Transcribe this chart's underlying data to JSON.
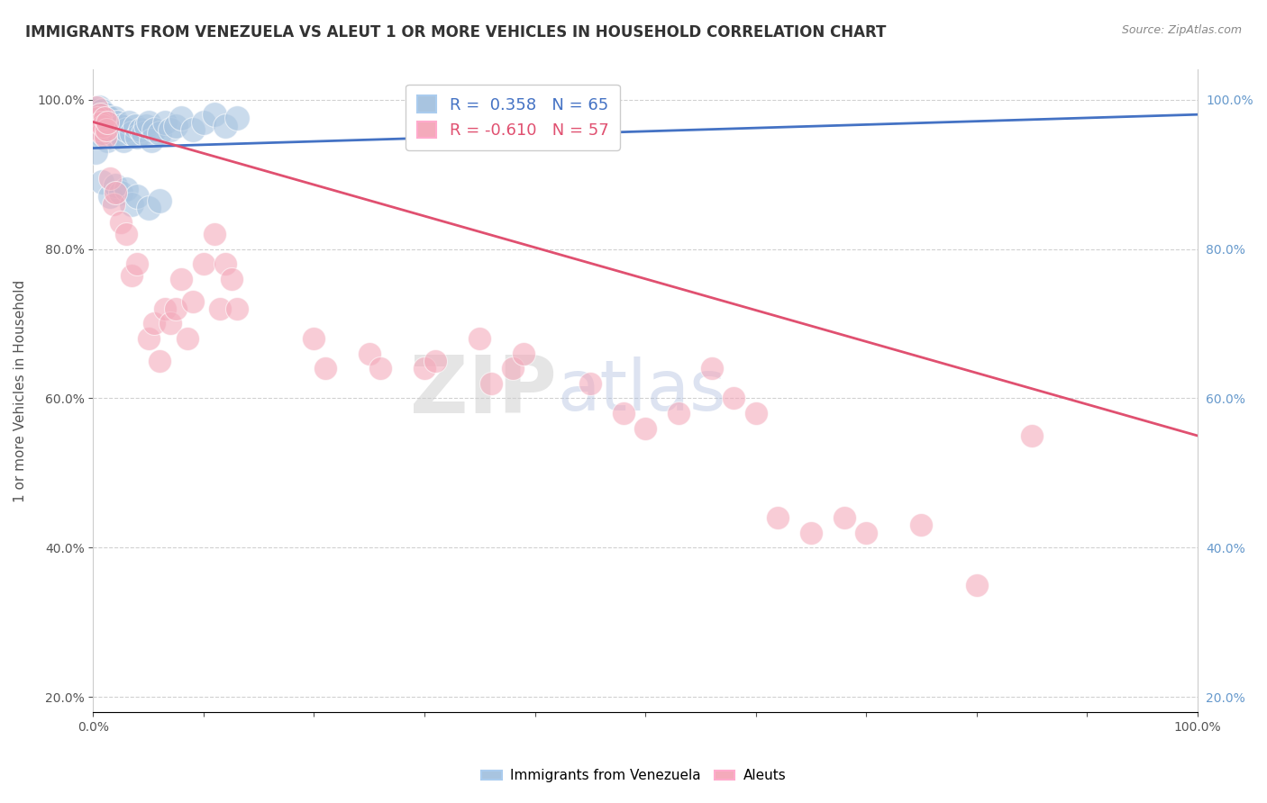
{
  "title": "IMMIGRANTS FROM VENEZUELA VS ALEUT 1 OR MORE VEHICLES IN HOUSEHOLD CORRELATION CHART",
  "source": "Source: ZipAtlas.com",
  "ylabel": "1 or more Vehicles in Household",
  "legend_label1": "Immigrants from Venezuela",
  "legend_label2": "Aleuts",
  "R_blue": 0.358,
  "N_blue": 65,
  "R_pink": -0.61,
  "N_pink": 57,
  "blue_color": "#A8C4E0",
  "pink_color": "#F4AABB",
  "blue_line_color": "#4472C4",
  "pink_line_color": "#E05070",
  "watermark_zip": "ZIP",
  "watermark_atlas": "atlas",
  "ylim_min": 0.18,
  "ylim_max": 1.04,
  "blue_points": [
    [
      0.001,
      0.985
    ],
    [
      0.002,
      0.975
    ],
    [
      0.003,
      0.97
    ],
    [
      0.004,
      0.965
    ],
    [
      0.005,
      0.99
    ],
    [
      0.005,
      0.96
    ],
    [
      0.006,
      0.98
    ],
    [
      0.006,
      0.97
    ],
    [
      0.007,
      0.975
    ],
    [
      0.007,
      0.955
    ],
    [
      0.008,
      0.985
    ],
    [
      0.008,
      0.96
    ],
    [
      0.009,
      0.97
    ],
    [
      0.009,
      0.95
    ],
    [
      0.01,
      0.975
    ],
    [
      0.01,
      0.965
    ],
    [
      0.011,
      0.96
    ],
    [
      0.011,
      0.98
    ],
    [
      0.012,
      0.955
    ],
    [
      0.012,
      0.97
    ],
    [
      0.013,
      0.965
    ],
    [
      0.013,
      0.945
    ],
    [
      0.014,
      0.975
    ],
    [
      0.015,
      0.96
    ],
    [
      0.016,
      0.97
    ],
    [
      0.017,
      0.955
    ],
    [
      0.018,
      0.965
    ],
    [
      0.019,
      0.975
    ],
    [
      0.02,
      0.96
    ],
    [
      0.021,
      0.95
    ],
    [
      0.022,
      0.97
    ],
    [
      0.023,
      0.955
    ],
    [
      0.025,
      0.965
    ],
    [
      0.027,
      0.945
    ],
    [
      0.03,
      0.96
    ],
    [
      0.032,
      0.97
    ],
    [
      0.035,
      0.955
    ],
    [
      0.038,
      0.965
    ],
    [
      0.04,
      0.95
    ],
    [
      0.043,
      0.96
    ],
    [
      0.045,
      0.955
    ],
    [
      0.048,
      0.965
    ],
    [
      0.05,
      0.97
    ],
    [
      0.053,
      0.945
    ],
    [
      0.055,
      0.96
    ],
    [
      0.06,
      0.955
    ],
    [
      0.065,
      0.97
    ],
    [
      0.07,
      0.96
    ],
    [
      0.075,
      0.965
    ],
    [
      0.08,
      0.975
    ],
    [
      0.09,
      0.96
    ],
    [
      0.1,
      0.97
    ],
    [
      0.11,
      0.98
    ],
    [
      0.12,
      0.965
    ],
    [
      0.13,
      0.975
    ],
    [
      0.002,
      0.93
    ],
    [
      0.008,
      0.89
    ],
    [
      0.015,
      0.87
    ],
    [
      0.02,
      0.885
    ],
    [
      0.025,
      0.875
    ],
    [
      0.03,
      0.88
    ],
    [
      0.035,
      0.86
    ],
    [
      0.04,
      0.87
    ],
    [
      0.05,
      0.855
    ],
    [
      0.06,
      0.865
    ]
  ],
  "pink_points": [
    [
      0.003,
      0.99
    ],
    [
      0.004,
      0.975
    ],
    [
      0.005,
      0.96
    ],
    [
      0.006,
      0.98
    ],
    [
      0.007,
      0.97
    ],
    [
      0.008,
      0.955
    ],
    [
      0.009,
      0.965
    ],
    [
      0.01,
      0.975
    ],
    [
      0.011,
      0.95
    ],
    [
      0.012,
      0.96
    ],
    [
      0.013,
      0.97
    ],
    [
      0.015,
      0.895
    ],
    [
      0.018,
      0.86
    ],
    [
      0.02,
      0.875
    ],
    [
      0.025,
      0.835
    ],
    [
      0.03,
      0.82
    ],
    [
      0.035,
      0.765
    ],
    [
      0.04,
      0.78
    ],
    [
      0.05,
      0.68
    ],
    [
      0.055,
      0.7
    ],
    [
      0.06,
      0.65
    ],
    [
      0.065,
      0.72
    ],
    [
      0.07,
      0.7
    ],
    [
      0.075,
      0.72
    ],
    [
      0.08,
      0.76
    ],
    [
      0.085,
      0.68
    ],
    [
      0.09,
      0.73
    ],
    [
      0.1,
      0.78
    ],
    [
      0.11,
      0.82
    ],
    [
      0.115,
      0.72
    ],
    [
      0.12,
      0.78
    ],
    [
      0.125,
      0.76
    ],
    [
      0.13,
      0.72
    ],
    [
      0.2,
      0.68
    ],
    [
      0.21,
      0.64
    ],
    [
      0.25,
      0.66
    ],
    [
      0.26,
      0.64
    ],
    [
      0.3,
      0.64
    ],
    [
      0.31,
      0.65
    ],
    [
      0.35,
      0.68
    ],
    [
      0.36,
      0.62
    ],
    [
      0.38,
      0.64
    ],
    [
      0.39,
      0.66
    ],
    [
      0.45,
      0.62
    ],
    [
      0.48,
      0.58
    ],
    [
      0.5,
      0.56
    ],
    [
      0.53,
      0.58
    ],
    [
      0.56,
      0.64
    ],
    [
      0.58,
      0.6
    ],
    [
      0.6,
      0.58
    ],
    [
      0.62,
      0.44
    ],
    [
      0.65,
      0.42
    ],
    [
      0.68,
      0.44
    ],
    [
      0.7,
      0.42
    ],
    [
      0.75,
      0.43
    ],
    [
      0.8,
      0.35
    ],
    [
      0.85,
      0.55
    ]
  ]
}
